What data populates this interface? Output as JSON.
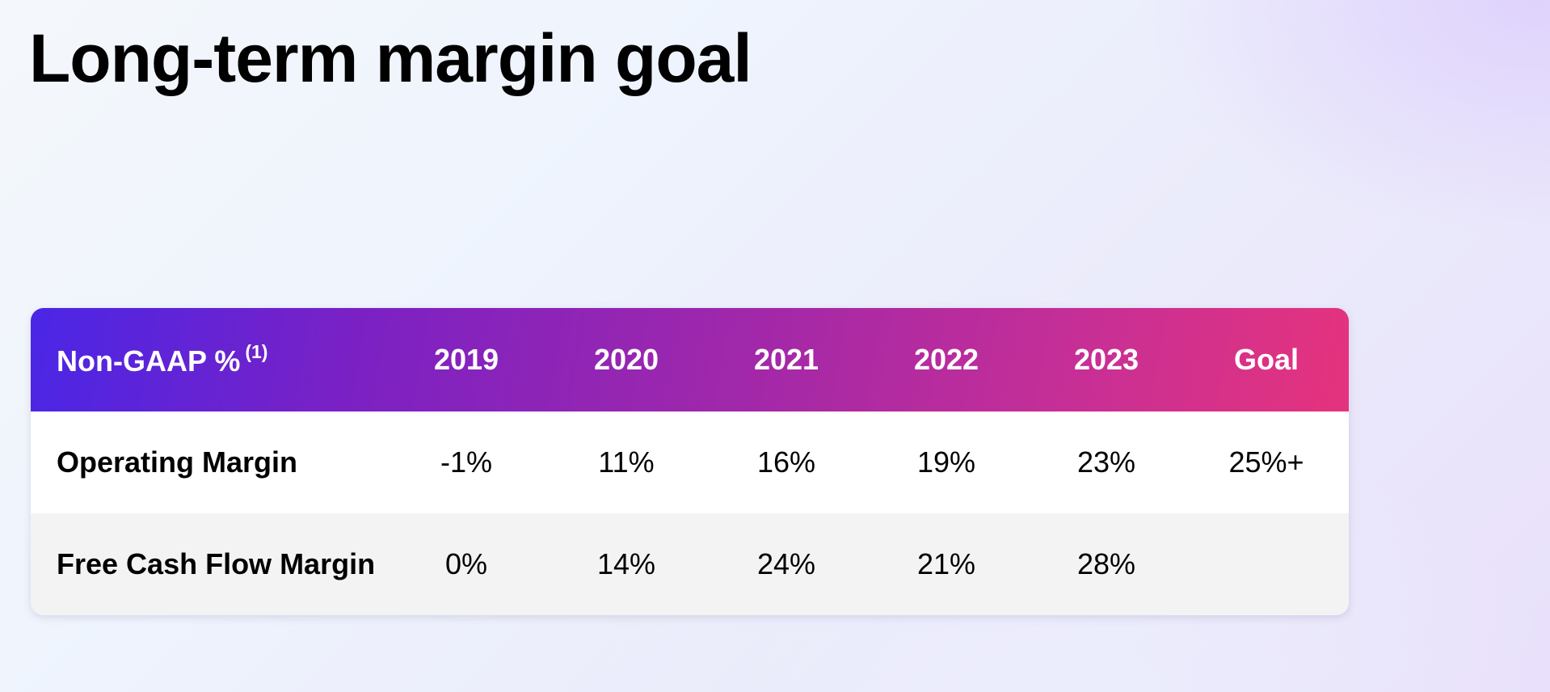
{
  "page": {
    "title": "Long-term margin goal"
  },
  "table": {
    "header_label": "Non-GAAP %",
    "header_footnote": "(1)",
    "columns": [
      "2019",
      "2020",
      "2021",
      "2022",
      "2023",
      "Goal"
    ],
    "rows": [
      {
        "label": "Operating Margin",
        "values": [
          "-1%",
          "11%",
          "16%",
          "19%",
          "23%",
          "25%+"
        ]
      },
      {
        "label": "Free Cash Flow Margin",
        "values": [
          "0%",
          "14%",
          "24%",
          "21%",
          "28%",
          ""
        ]
      }
    ]
  },
  "colors": {
    "header_gradient_start": "#4a26e6",
    "header_gradient_mid": "#a228a9",
    "header_gradient_end": "#e5337d",
    "row_odd": "#ffffff",
    "row_even": "#f3f3f3"
  }
}
